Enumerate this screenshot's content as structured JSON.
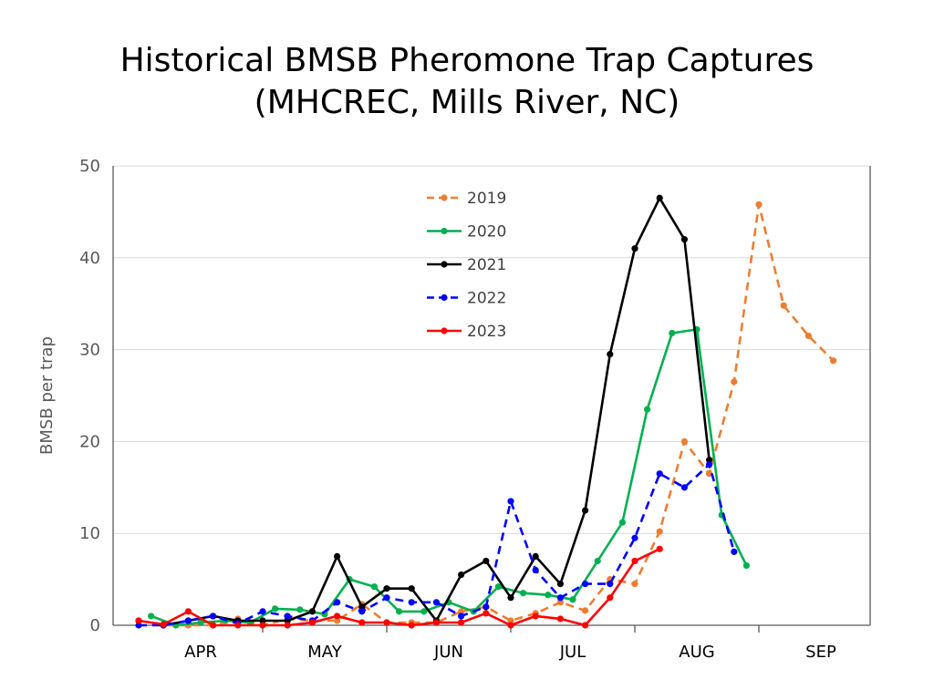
{
  "chart_data": {
    "type": "line",
    "title_line1": "Historical BMSB Pheromone Trap Captures",
    "title_line2": "(MHCREC, Mills River, NC)",
    "ylabel": "BMSB per trap",
    "ylim": [
      0,
      50
    ],
    "yticks": [
      0,
      10,
      20,
      30,
      40,
      50
    ],
    "grid": true,
    "legend_position": "top-center",
    "months": [
      "APR",
      "MAY",
      "JUN",
      "JUL",
      "AUG",
      "SEP"
    ],
    "series": [
      {
        "name": "2019",
        "color": "#ED7D31",
        "dashed": true,
        "points": [
          [
            0.0,
            0.5
          ],
          [
            0.2,
            0
          ],
          [
            0.4,
            0
          ],
          [
            0.6,
            0
          ],
          [
            0.8,
            0.7
          ],
          [
            1.0,
            0
          ],
          [
            1.2,
            0.7
          ],
          [
            1.4,
            0.5
          ],
          [
            1.6,
            0.5
          ],
          [
            1.8,
            2.3
          ],
          [
            2.0,
            0.3
          ],
          [
            2.2,
            0.3
          ],
          [
            2.4,
            0.3
          ],
          [
            2.6,
            1.5
          ],
          [
            2.8,
            2.0
          ],
          [
            3.0,
            0.5
          ],
          [
            3.2,
            1.3
          ],
          [
            3.4,
            2.5
          ],
          [
            3.6,
            1.6
          ],
          [
            3.8,
            5.0
          ],
          [
            4.0,
            4.5
          ],
          [
            4.2,
            10.2
          ],
          [
            4.4,
            20.0
          ],
          [
            4.6,
            16.5
          ],
          [
            4.8,
            26.5
          ],
          [
            5.0,
            45.8
          ],
          [
            5.2,
            34.8
          ],
          [
            5.4,
            31.5
          ],
          [
            5.6,
            28.8
          ]
        ]
      },
      {
        "name": "2020",
        "color": "#00B050",
        "dashed": false,
        "points": [
          [
            0.1,
            1.0
          ],
          [
            0.3,
            0
          ],
          [
            0.5,
            0.3
          ],
          [
            0.7,
            0.5
          ],
          [
            0.9,
            0.3
          ],
          [
            1.1,
            1.8
          ],
          [
            1.3,
            1.7
          ],
          [
            1.5,
            1.2
          ],
          [
            1.7,
            5.0
          ],
          [
            1.9,
            4.2
          ],
          [
            2.1,
            1.5
          ],
          [
            2.3,
            1.5
          ],
          [
            2.5,
            2.5
          ],
          [
            2.7,
            1.5
          ],
          [
            2.9,
            4.2
          ],
          [
            3.1,
            3.5
          ],
          [
            3.3,
            3.3
          ],
          [
            3.5,
            2.8
          ],
          [
            3.7,
            7.0
          ],
          [
            3.9,
            11.2
          ],
          [
            4.1,
            23.5
          ],
          [
            4.3,
            31.8
          ],
          [
            4.5,
            32.2
          ],
          [
            4.7,
            12.0
          ],
          [
            4.9,
            6.5
          ]
        ]
      },
      {
        "name": "2021",
        "color": "#000000",
        "dashed": false,
        "points": [
          [
            0.2,
            0
          ],
          [
            0.4,
            0.5
          ],
          [
            0.6,
            1.0
          ],
          [
            0.8,
            0.5
          ],
          [
            1.0,
            0.5
          ],
          [
            1.2,
            0.5
          ],
          [
            1.4,
            1.5
          ],
          [
            1.6,
            7.5
          ],
          [
            1.8,
            2.0
          ],
          [
            2.0,
            4.0
          ],
          [
            2.2,
            4.0
          ],
          [
            2.4,
            0.5
          ],
          [
            2.6,
            5.5
          ],
          [
            2.8,
            7.0
          ],
          [
            3.0,
            3.0
          ],
          [
            3.2,
            7.5
          ],
          [
            3.4,
            4.5
          ],
          [
            3.6,
            12.5
          ],
          [
            3.8,
            29.5
          ],
          [
            4.0,
            41.0
          ],
          [
            4.2,
            46.5
          ],
          [
            4.4,
            42.0
          ],
          [
            4.6,
            18.0
          ]
        ]
      },
      {
        "name": "2022",
        "color": "#0000FF",
        "dashed": true,
        "points": [
          [
            0.0,
            0
          ],
          [
            0.2,
            0
          ],
          [
            0.4,
            0.5
          ],
          [
            0.6,
            1.0
          ],
          [
            0.8,
            0.2
          ],
          [
            1.0,
            1.5
          ],
          [
            1.2,
            1.0
          ],
          [
            1.4,
            0.5
          ],
          [
            1.6,
            2.5
          ],
          [
            1.8,
            1.5
          ],
          [
            2.0,
            3.0
          ],
          [
            2.2,
            2.5
          ],
          [
            2.4,
            2.5
          ],
          [
            2.6,
            1.0
          ],
          [
            2.8,
            2.0
          ],
          [
            3.0,
            13.5
          ],
          [
            3.2,
            6.0
          ],
          [
            3.4,
            3.0
          ],
          [
            3.6,
            4.5
          ],
          [
            3.8,
            4.5
          ],
          [
            4.0,
            9.5
          ],
          [
            4.2,
            16.5
          ],
          [
            4.4,
            15.0
          ],
          [
            4.6,
            17.5
          ],
          [
            4.8,
            8.0
          ]
        ]
      },
      {
        "name": "2023",
        "color": "#FF0000",
        "dashed": false,
        "points": [
          [
            0.0,
            0.5
          ],
          [
            0.2,
            0.1
          ],
          [
            0.4,
            1.5
          ],
          [
            0.6,
            0
          ],
          [
            0.8,
            0
          ],
          [
            1.0,
            0
          ],
          [
            1.2,
            0
          ],
          [
            1.4,
            0.3
          ],
          [
            1.6,
            1.0
          ],
          [
            1.8,
            0.3
          ],
          [
            2.0,
            0.3
          ],
          [
            2.2,
            0
          ],
          [
            2.4,
            0.3
          ],
          [
            2.6,
            0.3
          ],
          [
            2.8,
            1.3
          ],
          [
            3.0,
            0
          ],
          [
            3.2,
            1.0
          ],
          [
            3.4,
            0.7
          ],
          [
            3.6,
            0
          ],
          [
            3.8,
            3.0
          ],
          [
            4.0,
            7.0
          ],
          [
            4.2,
            8.3
          ]
        ]
      }
    ]
  }
}
